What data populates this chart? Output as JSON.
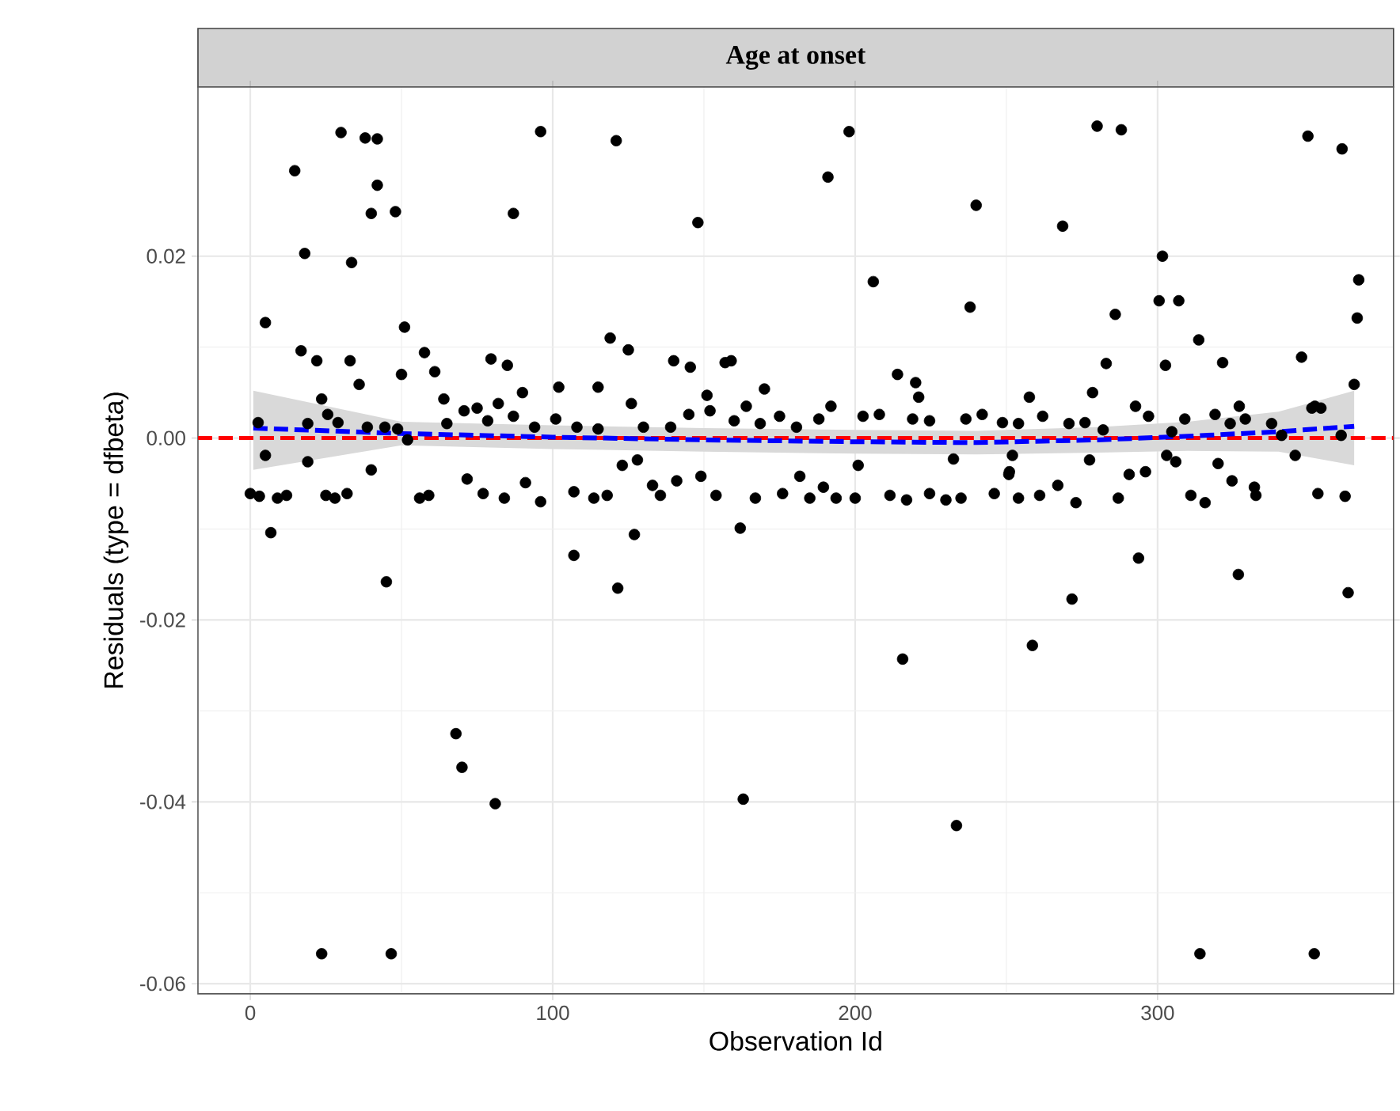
{
  "chart_data": {
    "type": "scatter",
    "title": "Age at onset",
    "xlabel": "Observation Id",
    "ylabel": "Residuals (type = dfbeta)",
    "xlim": [
      -17.3,
      378
    ],
    "ylim": [
      -0.0611,
      0.0386
    ],
    "xticks": [
      0,
      100,
      200,
      300
    ],
    "yticks": [
      -0.06,
      -0.04,
      -0.02,
      {
        "value": 0,
        "label": "0.00"
      },
      0.02
    ],
    "grid": true,
    "marker": "circle",
    "ref_lines": [
      {
        "axis": "y",
        "value": 0,
        "color": "#ff0000",
        "line_style": "dashed"
      }
    ],
    "series": [
      {
        "color": "#000000",
        "x": [
          14.7,
          30,
          38,
          42,
          42,
          40,
          48,
          33.5,
          18,
          5,
          51,
          87,
          96,
          121,
          148,
          191,
          198,
          206,
          240,
          238,
          280,
          288,
          268.6,
          301.6,
          300.5,
          307,
          286,
          313.6,
          302.6,
          321.5,
          283,
          349.7,
          361,
          366.5,
          366,
          347.6,
          365,
          278.5,
          257.6,
          57.6,
          61,
          50,
          36,
          33,
          22,
          16.8,
          23.6,
          79.6,
          85,
          90,
          102,
          115,
          64,
          82,
          119,
          125,
          140,
          145.5,
          157,
          159,
          170,
          151,
          164,
          192,
          214,
          220,
          221,
          126,
          292.7,
          327,
          352,
          23.6,
          46.6,
          68,
          70,
          81,
          163,
          215.7,
          233.5,
          258.6,
          271.7,
          293.7,
          314,
          326.7,
          351.8,
          363,
          6.8,
          45,
          107,
          121.5,
          127,
          162,
          0,
          3,
          9,
          12,
          25,
          28,
          32,
          40,
          56,
          59,
          71.7,
          77,
          84,
          91,
          96,
          107,
          113.6,
          5,
          19,
          123,
          128,
          118,
          133,
          135.6,
          141,
          149,
          154,
          167,
          176,
          181.7,
          185,
          189.5,
          193.7,
          200,
          201,
          211.5,
          217,
          224.6,
          230,
          235,
          232.5,
          246,
          250.8,
          251,
          252,
          254,
          261,
          267,
          273,
          277.5,
          287,
          290.6,
          296,
          303,
          306,
          311,
          315.7,
          320,
          324.6,
          332,
          332.5,
          345.5,
          353,
          362,
          2.6,
          19,
          25.6,
          29,
          38.7,
          44.5,
          48.7,
          52,
          65,
          70.7,
          75,
          78.5,
          87,
          94,
          101,
          108,
          115,
          130,
          139,
          145,
          152,
          160,
          168.6,
          175,
          180.6,
          188,
          202.6,
          208,
          219,
          224.6,
          236.6,
          242,
          248.7,
          254,
          262,
          270.7,
          276,
          282,
          297,
          304.7,
          309,
          319,
          324,
          329,
          337.7,
          341,
          351,
          354,
          360.7
        ],
        "values": [
          0.0294,
          0.0336,
          0.033,
          0.0329,
          0.0278,
          0.0247,
          0.0249,
          0.0193,
          0.0203,
          0.0127,
          0.0122,
          0.0247,
          0.0337,
          0.0327,
          0.0237,
          0.0287,
          0.0337,
          0.0172,
          0.0256,
          0.0144,
          0.0343,
          0.0339,
          0.0233,
          0.02,
          0.0151,
          0.0151,
          0.0136,
          0.0108,
          0.008,
          0.0083,
          0.0082,
          0.0332,
          0.0318,
          0.0174,
          0.0132,
          0.0089,
          0.0059,
          0.005,
          0.0045,
          0.0094,
          0.0073,
          0.007,
          0.0059,
          0.0085,
          0.0085,
          0.0096,
          0.0043,
          0.0087,
          0.008,
          0.005,
          0.0056,
          0.0056,
          0.0043,
          0.0038,
          0.011,
          0.0097,
          0.0085,
          0.0078,
          0.0083,
          0.0085,
          0.0054,
          0.0047,
          0.0035,
          0.0035,
          0.007,
          0.0061,
          0.0045,
          0.0038,
          0.0035,
          0.0035,
          0.0035,
          -0.0567,
          -0.0567,
          -0.0325,
          -0.0362,
          -0.0402,
          -0.0397,
          -0.0243,
          -0.0426,
          -0.0228,
          -0.0177,
          -0.0132,
          -0.0567,
          -0.015,
          -0.0567,
          -0.017,
          -0.0104,
          -0.0158,
          -0.0129,
          -0.0165,
          -0.0106,
          -0.0099,
          -0.0061,
          -0.0064,
          -0.0066,
          -0.0063,
          -0.0063,
          -0.0066,
          -0.0061,
          -0.0035,
          -0.0066,
          -0.0063,
          -0.0045,
          -0.0061,
          -0.0066,
          -0.0049,
          -0.007,
          -0.0059,
          -0.0066,
          -0.0019,
          -0.0026,
          -0.003,
          -0.0024,
          -0.0063,
          -0.0052,
          -0.0063,
          -0.0047,
          -0.0042,
          -0.0063,
          -0.0066,
          -0.0061,
          -0.0042,
          -0.0066,
          -0.0054,
          -0.0066,
          -0.0066,
          -0.003,
          -0.0063,
          -0.0068,
          -0.0061,
          -0.0068,
          -0.0066,
          -0.0023,
          -0.0061,
          -0.004,
          -0.0037,
          -0.0019,
          -0.0066,
          -0.0063,
          -0.0052,
          -0.0071,
          -0.0024,
          -0.0066,
          -0.004,
          -0.0037,
          -0.0019,
          -0.0026,
          -0.0063,
          -0.0071,
          -0.0028,
          -0.0047,
          -0.0054,
          -0.0063,
          -0.0019,
          -0.0061,
          -0.0064,
          0.0017,
          0.0016,
          0.0026,
          0.0017,
          0.0012,
          0.0012,
          0.001,
          -0.0002,
          0.0016,
          0.003,
          0.0033,
          0.0019,
          0.0024,
          0.0012,
          0.0021,
          0.0012,
          0.001,
          0.0012,
          0.0012,
          0.0026,
          0.003,
          0.0019,
          0.0016,
          0.0024,
          0.0012,
          0.0021,
          0.0024,
          0.0026,
          0.0021,
          0.0019,
          0.0021,
          0.0026,
          0.0017,
          0.0016,
          0.0024,
          0.0016,
          0.0017,
          0.0009,
          0.0024,
          0.0007,
          0.0021,
          0.0026,
          0.0016,
          0.0021,
          0.0016,
          0.0003,
          0.0033,
          0.0033,
          0.0003
        ]
      },
      {
        "type": "line",
        "color": "#0000ff",
        "line_style": "dashed",
        "marker": "none",
        "x": [
          1,
          50,
          100,
          150,
          200,
          240,
          280,
          310,
          340,
          365
        ],
        "values": [
          0.0011,
          0.0005,
          0.0001,
          -0.0002,
          -0.0004,
          -0.0005,
          -0.0002,
          0.0002,
          0.0007,
          0.0013
        ],
        "lower": [
          -0.0035,
          -0.0008,
          -0.0012,
          -0.0015,
          -0.0017,
          -0.0018,
          -0.0016,
          -0.0014,
          -0.0015,
          -0.003
        ],
        "upper": [
          0.0052,
          0.0018,
          0.0014,
          0.0011,
          0.0009,
          0.0008,
          0.0012,
          0.0018,
          0.0029,
          0.0052
        ]
      }
    ]
  }
}
